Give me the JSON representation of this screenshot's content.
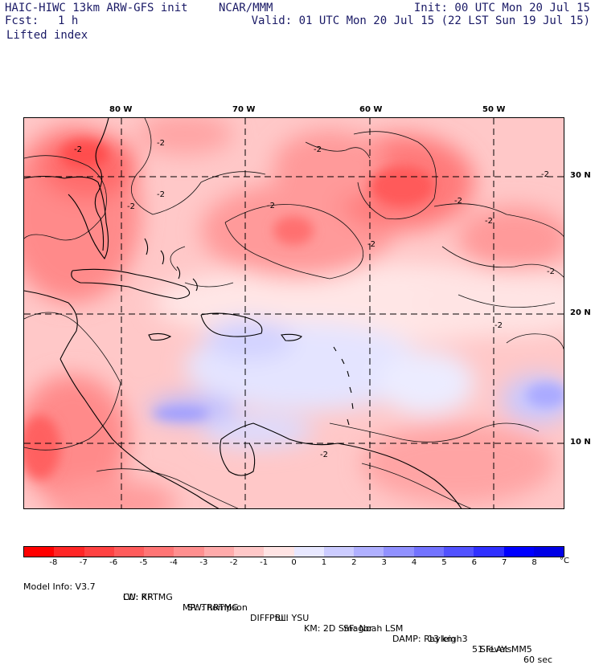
{
  "header": {
    "model_title": "HAIC-HIWC 13km ARW-GFS init",
    "institution": "NCAR/MMM",
    "init_time": "Init: 00 UTC Mon 20 Jul 15",
    "forecast_label": "Fcst:",
    "forecast_hour": "1 h",
    "valid_time": "Valid: 01 UTC Mon 20 Jul 15 (22 LST Sun 19 Jul 15)",
    "field_name": "Lifted index"
  },
  "map": {
    "lon_labels": [
      "80 W",
      "70 W",
      "60 W",
      "50 W"
    ],
    "lat_labels": [
      "30 N",
      "20 N",
      "10 N"
    ],
    "contour_labels": [
      "-2",
      "-2",
      "-2",
      "-2",
      "-2",
      "-2",
      "-2",
      "-2",
      "-2",
      "-2",
      "-2",
      "-2",
      "-2"
    ]
  },
  "colorbar": {
    "ticks": [
      "-8",
      "-7",
      "-6",
      "-5",
      "-4",
      "-3",
      "-2",
      "-1",
      "0",
      "1",
      "2",
      "3",
      "4",
      "5",
      "6",
      "7",
      "8"
    ],
    "unit": "°C",
    "colors": [
      "#ff0000",
      "#ff2626",
      "#ff4242",
      "#ff5c5c",
      "#ff7575",
      "#ff8f8f",
      "#ffabab",
      "#ffc8c8",
      "#ffe4e4",
      "#e8e8ff",
      "#ccccff",
      "#b0b0ff",
      "#9191ff",
      "#7373ff",
      "#5252ff",
      "#3030ff",
      "#0000ff",
      "#0000e6"
    ]
  },
  "footer": {
    "line1": [
      "Model Info: V3.7",
      "CU: KF",
      "MP: Thompson",
      "PBL: YSU",
      "SF: Noah LSM",
      "13 km",
      "51 levels",
      "60 sec"
    ],
    "line2": [
      "LW: RRTMG",
      "SW: RRTMG",
      "DIFF: full",
      "KM: 2D Smagor",
      "DAMP: Rayleigh3",
      "SFLAY: MM5"
    ]
  }
}
